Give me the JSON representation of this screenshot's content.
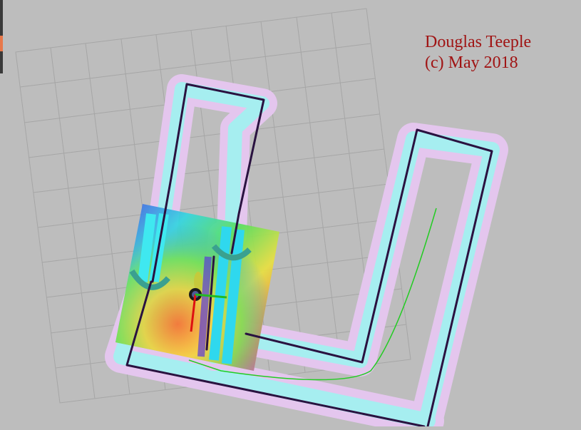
{
  "viewer": {
    "name": "rviz-map-view",
    "background_color": "#bdbdbd",
    "grid_color": "#a6a6a6",
    "inflation_color": "#e4c6ee",
    "wall_buffer_color": "#a6eef0",
    "wall_color": "#2a1240",
    "global_plan_color": "#22cc22",
    "robot_body_color": "#1a1a1a",
    "axis_x_color": "#dd1111",
    "axis_y_color": "#22bb22",
    "icons": [
      "grid",
      "occupancy-map",
      "costmap",
      "robot-model",
      "axes",
      "path"
    ]
  },
  "watermark": {
    "line1": "Douglas Teeple",
    "line2": "(c) May 2018",
    "color": "#a01414"
  }
}
